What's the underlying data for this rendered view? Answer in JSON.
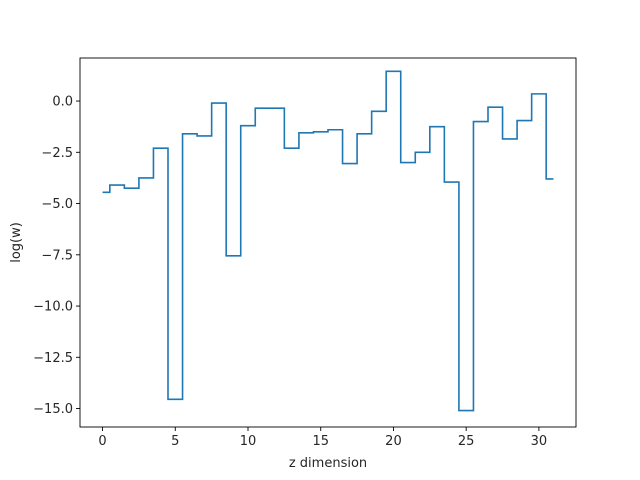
{
  "chart_data": {
    "type": "line",
    "drawstyle": "steps-mid",
    "title": "",
    "xlabel": "z dimension",
    "ylabel": "log(w)",
    "xlim": [
      -1.55,
      32.55
    ],
    "ylim": [
      -15.9,
      2.1
    ],
    "xticks": [
      0,
      5,
      10,
      15,
      20,
      25,
      30
    ],
    "xtick_labels": [
      "0",
      "5",
      "10",
      "15",
      "20",
      "25",
      "30"
    ],
    "yticks": [
      0.0,
      -2.5,
      -5.0,
      -7.5,
      -10.0,
      -12.5,
      -15.0
    ],
    "ytick_labels": [
      "0.0",
      "−2.5",
      "−5.0",
      "−7.5",
      "−10.0",
      "−12.5",
      "−15.0"
    ],
    "grid": false,
    "legend": "none",
    "series": [
      {
        "color": "#1f77b4",
        "x": [
          0,
          1,
          2,
          3,
          4,
          5,
          6,
          7,
          8,
          9,
          10,
          11,
          12,
          13,
          14,
          15,
          16,
          17,
          18,
          19,
          20,
          21,
          22,
          23,
          24,
          25,
          26,
          27,
          28,
          29,
          30,
          31
        ],
        "values": [
          -4.45,
          -4.1,
          -4.25,
          -3.75,
          -2.3,
          -14.55,
          -1.6,
          -1.7,
          -0.1,
          -7.55,
          -1.2,
          -0.35,
          -0.35,
          -2.3,
          -1.55,
          -1.5,
          -1.4,
          -3.05,
          -1.6,
          -0.5,
          1.45,
          -3.0,
          -2.5,
          -1.25,
          -3.95,
          -15.1,
          -1.0,
          -0.3,
          -1.85,
          -0.95,
          0.35,
          -3.8
        ]
      }
    ]
  }
}
